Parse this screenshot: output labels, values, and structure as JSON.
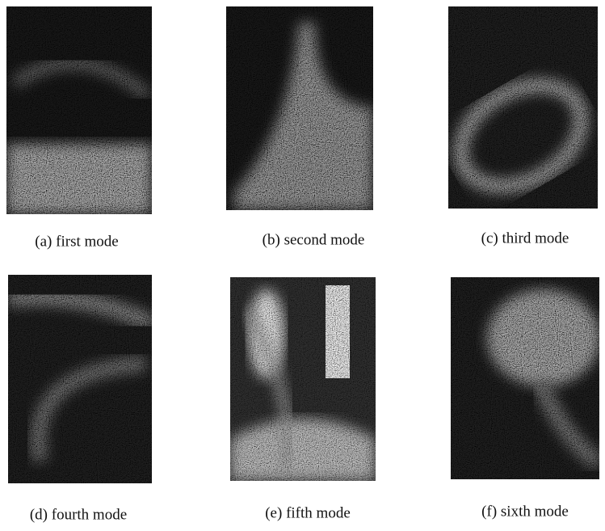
{
  "panels": [
    {
      "caption": "(a) first mode"
    },
    {
      "caption": "(b) second mode"
    },
    {
      "caption": "(c) third mode"
    },
    {
      "caption": "(d) fourth mode"
    },
    {
      "caption": "(e) fifth mode"
    },
    {
      "caption": "(f) sixth mode"
    }
  ]
}
